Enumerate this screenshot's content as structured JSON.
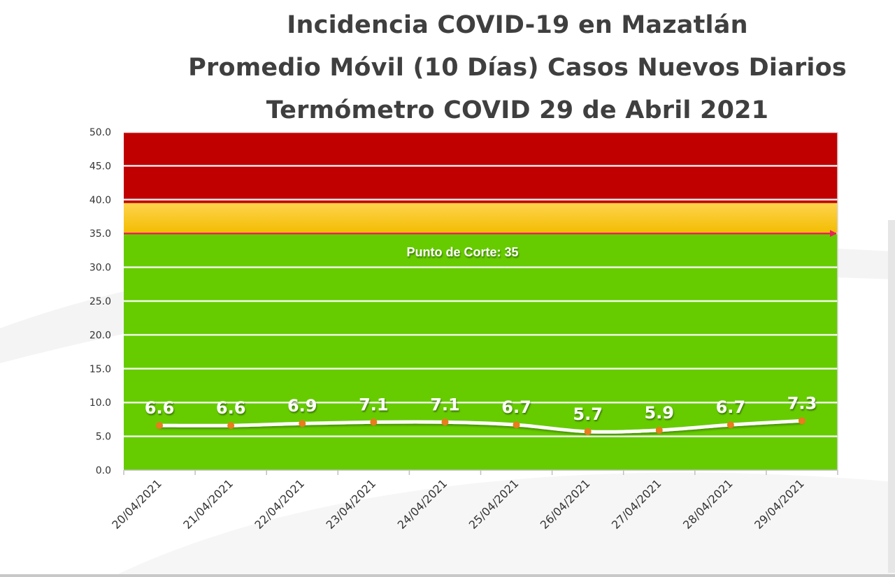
{
  "title": {
    "line1": "Incidencia COVID-19 en Mazatlán",
    "line2": "Promedio Móvil (10 Días) Casos Nuevos Diarios",
    "line3": "Termómetro COVID 29 de Abril 2021"
  },
  "chart_data": {
    "type": "line",
    "categories": [
      "20/04/2021",
      "21/04/2021",
      "22/04/2021",
      "23/04/2021",
      "24/04/2021",
      "25/04/2021",
      "26/04/2021",
      "27/04/2021",
      "28/04/2021",
      "29/04/2021"
    ],
    "values": [
      6.6,
      6.6,
      6.9,
      7.1,
      7.1,
      6.7,
      5.7,
      5.9,
      6.7,
      7.3
    ],
    "data_labels": [
      "6.6",
      "6.6",
      "6.9",
      "7.1",
      "7.1",
      "6.7",
      "5.7",
      "5.9",
      "6.7",
      "7.3"
    ],
    "ylim": [
      0,
      50
    ],
    "yticks": [
      "0.0",
      "5.0",
      "10.0",
      "15.0",
      "20.0",
      "25.0",
      "30.0",
      "35.0",
      "40.0",
      "45.0",
      "50.0"
    ],
    "ytick_values": [
      0,
      5,
      10,
      15,
      20,
      25,
      30,
      35,
      40,
      45,
      50
    ],
    "bands": [
      {
        "from": 0,
        "to": 35,
        "color": "#66cc00"
      },
      {
        "from": 35,
        "to": 39.5,
        "color": "#f5c400"
      },
      {
        "from": 39.5,
        "to": 50,
        "color": "#c00000"
      }
    ],
    "threshold": {
      "value": 35,
      "label": "Punto de Corte: 35",
      "color": "#e8235a"
    },
    "line_color": "#ffffff",
    "marker_color": "#e87c1e",
    "grid": true,
    "legend": "none"
  }
}
